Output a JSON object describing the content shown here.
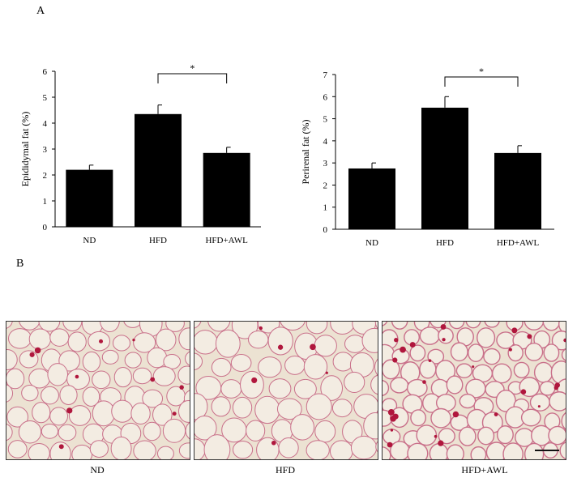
{
  "panel_a_label": "A",
  "panel_b_label": "B",
  "chart_data": [
    {
      "type": "bar",
      "categories": [
        "ND",
        "HFD",
        "HFD+AWL"
      ],
      "values": [
        2.2,
        4.35,
        2.85
      ],
      "errors": [
        0.18,
        0.35,
        0.22
      ],
      "ylabel": "Epididymal fat (%)",
      "ylim": [
        0,
        6
      ],
      "yticks": [
        0,
        1,
        2,
        3,
        4,
        5,
        6
      ],
      "significance": {
        "from": "HFD",
        "to": "HFD+AWL",
        "label": "*"
      },
      "bar_color": "#000000"
    },
    {
      "type": "bar",
      "categories": [
        "ND",
        "HFD",
        "HFD+AWL"
      ],
      "values": [
        2.75,
        5.5,
        3.45
      ],
      "errors": [
        0.25,
        0.5,
        0.33
      ],
      "ylabel": "Perirenal fat (%)",
      "ylim": [
        0,
        7
      ],
      "yticks": [
        0,
        1,
        2,
        3,
        4,
        5,
        6,
        7
      ],
      "significance": {
        "from": "HFD",
        "to": "HFD+AWL",
        "label": "*"
      },
      "bar_color": "#000000"
    }
  ],
  "micrographs": [
    {
      "label": "ND"
    },
    {
      "label": "HFD"
    },
    {
      "label": "HFD+AWL"
    }
  ],
  "colors": {
    "tissue_bg": "#ece2d2",
    "membrane": "#c9708a",
    "stain": "#b0173d"
  }
}
